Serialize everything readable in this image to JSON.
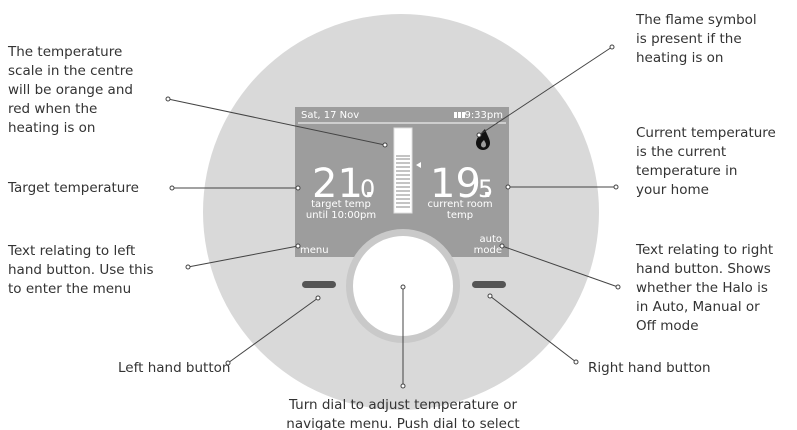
{
  "screen": {
    "date": "Sat, 17 Nov",
    "time": "9:33pm",
    "target_whole": "21.",
    "target_decimal": "0",
    "target_label": [
      "target temp",
      "until 10:00pm"
    ],
    "current_whole": "19.",
    "current_decimal": "5",
    "current_label": [
      "current room",
      "temp"
    ],
    "left_button_text": "menu",
    "right_button_text": [
      "auto",
      "mode"
    ]
  },
  "annotations": [
    {
      "lines": [
        "The temperature",
        "scale in the centre",
        "will be orange and",
        "red when the",
        "heating is on"
      ]
    },
    {
      "lines": [
        "Target temperature"
      ]
    },
    {
      "lines": [
        "Text relating to left",
        "hand button. Use this",
        "to enter the menu"
      ]
    },
    {
      "lines": [
        "Left hand button"
      ]
    },
    {
      "lines": [
        "Turn dial to adjust temperature or",
        "navigate menu. Push dial to select"
      ]
    },
    {
      "lines": [
        "Right hand button"
      ]
    },
    {
      "lines": [
        "Text relating to right",
        "hand button. Shows",
        "whether the Halo is",
        "in Auto, Manual or",
        "Off mode"
      ]
    },
    {
      "lines": [
        "Current temperature",
        "is the current",
        "temperature in",
        "your home"
      ]
    },
    {
      "lines": [
        "The flame symbol",
        "is present if the",
        "heating is on"
      ]
    }
  ]
}
